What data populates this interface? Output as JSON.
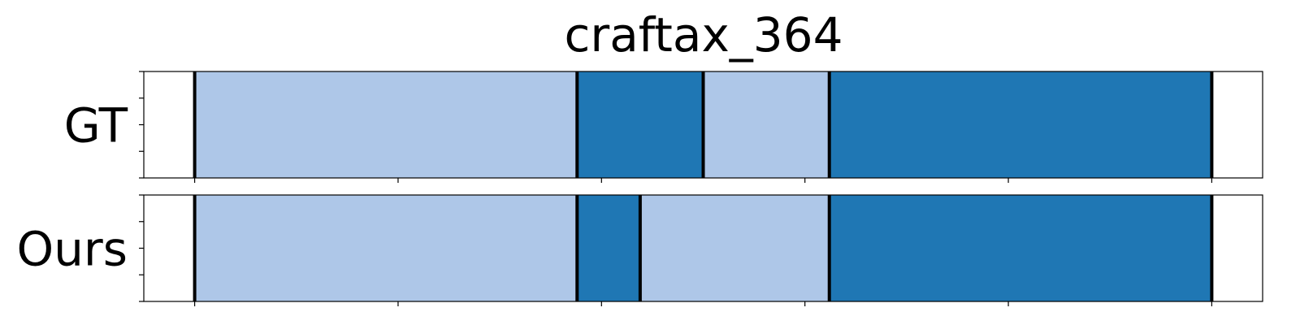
{
  "chart_data": {
    "type": "segmentation-timeline",
    "title": "craftax_364",
    "xlim": [
      -0.25,
      5.25
    ],
    "x_ticks": [
      0,
      1,
      2,
      3,
      4,
      5
    ],
    "rows": [
      {
        "label": "GT",
        "segments": [
          {
            "start": 0.0,
            "end": 1.88,
            "class": "light"
          },
          {
            "start": 1.88,
            "end": 2.5,
            "class": "dark"
          },
          {
            "start": 2.5,
            "end": 3.12,
            "class": "light"
          },
          {
            "start": 3.12,
            "end": 5.0,
            "class": "dark"
          }
        ],
        "boundaries": [
          0.0,
          1.88,
          2.5,
          3.12,
          5.0
        ]
      },
      {
        "label": "Ours",
        "segments": [
          {
            "start": 0.0,
            "end": 1.88,
            "class": "light"
          },
          {
            "start": 1.88,
            "end": 2.19,
            "class": "dark"
          },
          {
            "start": 2.19,
            "end": 3.12,
            "class": "light"
          },
          {
            "start": 3.12,
            "end": 5.0,
            "class": "dark"
          }
        ],
        "boundaries": [
          0.0,
          1.88,
          2.19,
          3.12,
          5.0
        ]
      }
    ],
    "colors": {
      "light": "#aec7e8",
      "dark": "#1f77b4",
      "boundary": "#000000",
      "frame": "#000000"
    },
    "grid": false,
    "legend": "none"
  }
}
